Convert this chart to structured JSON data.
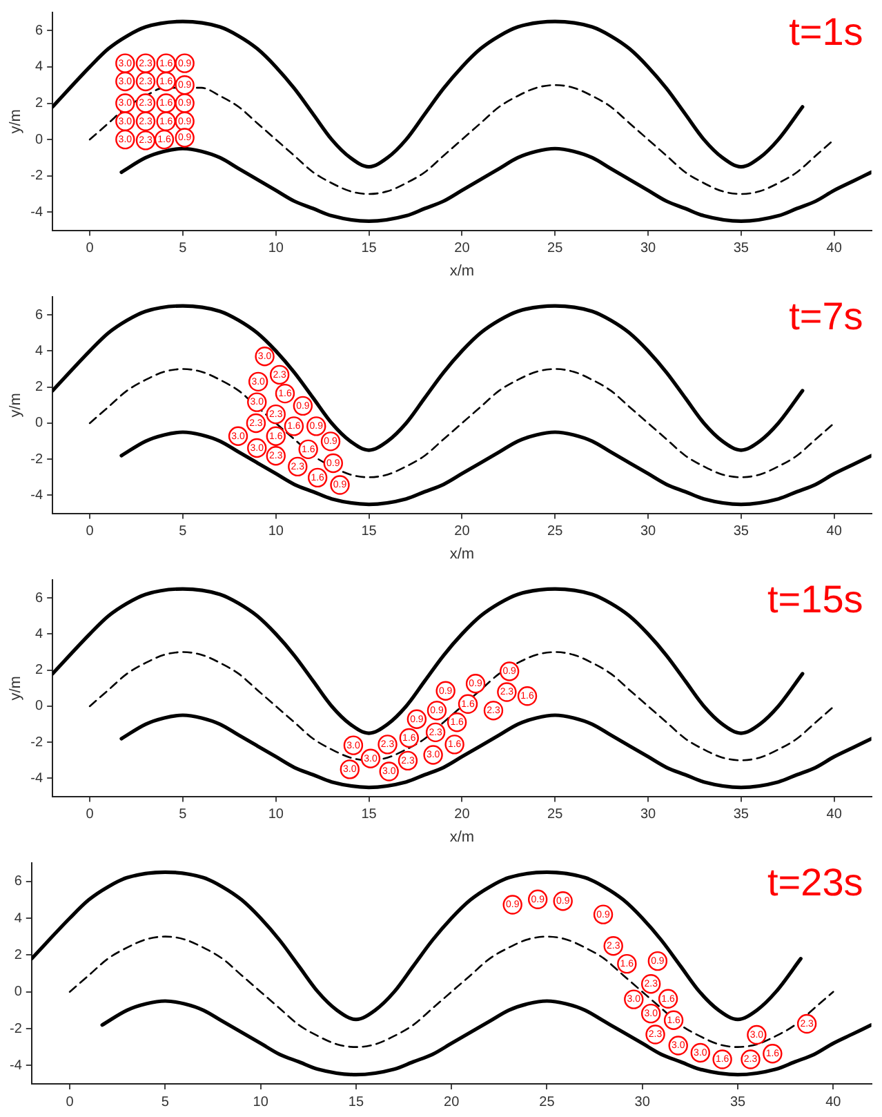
{
  "chart_data": [
    {
      "type": "scatter",
      "title": "t=1s",
      "xlabel": "x/m",
      "ylabel": "y/m",
      "xlim": [
        -2,
        42
      ],
      "ylim": [
        -5,
        7
      ],
      "xticks": [
        0,
        5,
        10,
        15,
        20,
        25,
        30,
        35,
        40
      ],
      "yticks": [
        -4,
        -2,
        0,
        2,
        4,
        6
      ],
      "grid": false,
      "legend": false,
      "series": [
        {
          "type": "line",
          "color": "#000000",
          "line_style": "solid",
          "marker": "none",
          "x": [
            -2,
            0,
            1,
            2,
            3,
            5,
            7,
            8,
            9,
            10,
            11,
            12,
            13,
            14,
            15,
            16,
            17,
            18,
            19,
            20,
            21,
            22,
            23,
            25,
            27,
            28,
            29,
            30,
            31,
            32,
            33,
            34,
            35,
            36,
            37,
            38.3
          ],
          "values": [
            1.8,
            4,
            5,
            5.7,
            6.2,
            6.5,
            6.2,
            5.7,
            5,
            4,
            2.8,
            1.4,
            0,
            -1,
            -1.5,
            -1,
            0,
            1.4,
            2.8,
            4,
            5,
            5.7,
            6.2,
            6.5,
            6.2,
            5.7,
            5,
            4,
            2.8,
            1.4,
            0,
            -1,
            -1.5,
            -1,
            0,
            1.8
          ]
        },
        {
          "type": "line",
          "color": "#000000",
          "line_style": "dashed",
          "marker": "none",
          "x": [
            0,
            1,
            2,
            3,
            4,
            6,
            7,
            8,
            9,
            10,
            11,
            12,
            13,
            14,
            15,
            16,
            17,
            18,
            19,
            20,
            21,
            22,
            23,
            24,
            25,
            26,
            27,
            28,
            29,
            30,
            31,
            32,
            33,
            34,
            35,
            36,
            37,
            38,
            39,
            40
          ],
          "values": [
            0,
            0.9,
            1.8,
            2.4,
            2.85,
            2.85,
            2.4,
            1.8,
            0.9,
            0,
            -0.9,
            -1.8,
            -2.4,
            -2.85,
            -3,
            -2.85,
            -2.4,
            -1.8,
            -0.9,
            0,
            0.9,
            1.8,
            2.4,
            2.85,
            3,
            2.85,
            2.4,
            1.8,
            0.9,
            0,
            -0.9,
            -1.8,
            -2.4,
            -2.85,
            -3,
            -2.85,
            -2.4,
            -1.8,
            -0.9,
            0
          ]
        },
        {
          "type": "line",
          "color": "#000000",
          "line_style": "solid",
          "marker": "none",
          "x": [
            1.7,
            3,
            4,
            5,
            6,
            7,
            8,
            9,
            10,
            11,
            12,
            13,
            15,
            17,
            18,
            19,
            20,
            21,
            22,
            23,
            24,
            25,
            26,
            27,
            28,
            29,
            30,
            31,
            32,
            33,
            35,
            37,
            38,
            39,
            40,
            41,
            42
          ],
          "values": [
            -1.8,
            -1,
            -0.65,
            -0.5,
            -0.65,
            -1,
            -1.6,
            -2.2,
            -2.8,
            -3.4,
            -3.8,
            -4.2,
            -4.5,
            -4.2,
            -3.8,
            -3.4,
            -2.8,
            -2.2,
            -1.6,
            -1,
            -0.65,
            -0.5,
            -0.65,
            -1,
            -1.6,
            -2.2,
            -2.8,
            -3.4,
            -3.8,
            -4.2,
            -4.5,
            -4.2,
            -3.8,
            -3.4,
            -2.8,
            -2.3,
            -1.8
          ]
        },
        {
          "name": "3.0",
          "color": "#ff0000",
          "marker": "circle",
          "x": [
            1.9,
            1.9,
            1.9,
            1.9,
            1.9
          ],
          "values": [
            4.2,
            3.2,
            2,
            1,
            0
          ]
        },
        {
          "name": "2.3",
          "color": "#ff0000",
          "marker": "circle",
          "x": [
            3,
            3,
            3,
            3,
            3
          ],
          "values": [
            4.2,
            3.2,
            2,
            1,
            -0.05
          ]
        },
        {
          "name": "1.6",
          "color": "#ff0000",
          "marker": "circle",
          "x": [
            4.1,
            4.1,
            4.1,
            4.1,
            4
          ],
          "values": [
            4.2,
            3.2,
            2,
            1,
            0
          ]
        },
        {
          "name": "0.9",
          "color": "#ff0000",
          "marker": "circle",
          "x": [
            5.1,
            5.1,
            5.1,
            5.1,
            5.1
          ],
          "values": [
            4.2,
            3,
            2,
            1,
            0.1
          ]
        }
      ]
    },
    {
      "type": "scatter",
      "title": "t=7s",
      "xlabel": "x/m",
      "ylabel": "y/m",
      "xlim": [
        -2,
        42
      ],
      "ylim": [
        -5,
        7
      ],
      "xticks": [
        0,
        5,
        10,
        15,
        20,
        25,
        30,
        35,
        40
      ],
      "yticks": [
        -4,
        -2,
        0,
        2,
        4,
        6
      ],
      "grid": false,
      "legend": false,
      "series": [
        {
          "type": "line",
          "color": "#000000",
          "line_style": "solid",
          "marker": "none",
          "x": [
            -2,
            0,
            1,
            2,
            3,
            5,
            7,
            8,
            9,
            10,
            11,
            12,
            13,
            14,
            15,
            16,
            17,
            18,
            19,
            20,
            21,
            22,
            23,
            25,
            27,
            28,
            29,
            30,
            31,
            32,
            33,
            34,
            35,
            36,
            37,
            38.3
          ],
          "values": [
            1.8,
            4,
            5,
            5.7,
            6.2,
            6.5,
            6.2,
            5.7,
            5,
            4,
            2.8,
            1.4,
            0,
            -1,
            -1.5,
            -1,
            0,
            1.4,
            2.8,
            4,
            5,
            5.7,
            6.2,
            6.5,
            6.2,
            5.7,
            5,
            4,
            2.8,
            1.4,
            0,
            -1,
            -1.5,
            -1,
            0,
            1.8
          ]
        },
        {
          "type": "line",
          "color": "#000000",
          "line_style": "dashed",
          "marker": "none",
          "x": [
            0,
            1,
            2,
            3,
            4,
            5,
            6,
            7,
            8,
            9,
            10,
            11,
            12,
            13,
            14,
            15,
            16,
            17,
            18,
            19,
            20,
            21,
            22,
            23,
            24,
            25,
            26,
            27,
            28,
            29,
            30,
            31,
            32,
            33,
            34,
            35,
            36,
            37,
            38,
            39,
            40
          ],
          "values": [
            0,
            0.9,
            1.8,
            2.4,
            2.85,
            3,
            2.85,
            2.4,
            1.8,
            0.9,
            0,
            -0.9,
            -1.8,
            -2.4,
            -2.85,
            -3,
            -2.85,
            -2.4,
            -1.8,
            -0.9,
            0,
            0.9,
            1.8,
            2.4,
            2.85,
            3,
            2.85,
            2.4,
            1.8,
            0.9,
            0,
            -0.9,
            -1.8,
            -2.4,
            -2.85,
            -3,
            -2.85,
            -2.4,
            -1.8,
            -0.9,
            0
          ]
        },
        {
          "type": "line",
          "color": "#000000",
          "line_style": "solid",
          "marker": "none",
          "x": [
            1.7,
            3,
            4,
            5,
            6,
            7,
            8,
            9,
            10,
            11,
            12,
            13,
            15,
            17,
            18,
            19,
            20,
            21,
            22,
            23,
            24,
            25,
            26,
            27,
            28,
            29,
            30,
            31,
            32,
            33,
            35,
            37,
            38,
            39,
            40,
            41,
            42
          ],
          "values": [
            -1.8,
            -1,
            -0.65,
            -0.5,
            -0.65,
            -1,
            -1.6,
            -2.2,
            -2.8,
            -3.4,
            -3.8,
            -4.2,
            -4.5,
            -4.2,
            -3.8,
            -3.4,
            -2.8,
            -2.2,
            -1.6,
            -1,
            -0.65,
            -0.5,
            -0.65,
            -1,
            -1.6,
            -2.2,
            -2.8,
            -3.4,
            -3.8,
            -4.2,
            -4.5,
            -4.2,
            -3.8,
            -3.4,
            -2.8,
            -2.3,
            -1.8
          ]
        },
        {
          "name": "3.0",
          "color": "#ff0000",
          "marker": "circle",
          "x": [
            9.4,
            9.05,
            8.98,
            7.97,
            8.98
          ],
          "values": [
            3.7,
            2.3,
            1.16,
            -0.72,
            -1.38
          ]
        },
        {
          "name": "2.3",
          "color": "#ff0000",
          "marker": "circle",
          "x": [
            10.2,
            10,
            8.93,
            10,
            11.17
          ],
          "values": [
            2.68,
            0.49,
            0,
            -1.81,
            -2.41
          ]
        },
        {
          "name": "1.6",
          "color": "#ff0000",
          "marker": "circle",
          "x": [
            10.49,
            10.97,
            10,
            11.74,
            12.24
          ],
          "values": [
            1.64,
            -0.17,
            -0.72,
            -1.45,
            -3.02
          ]
        },
        {
          "name": "0.9",
          "color": "#ff0000",
          "marker": "circle",
          "x": [
            11.45,
            12.17,
            12.94,
            13.08,
            13.44
          ],
          "values": [
            0.96,
            -0.17,
            -1.01,
            -2.22,
            -3.43
          ]
        }
      ]
    },
    {
      "type": "scatter",
      "title": "t=15s",
      "xlabel": "x/m",
      "ylabel": "y/m",
      "xlim": [
        -2,
        42
      ],
      "ylim": [
        -5,
        7
      ],
      "xticks": [
        0,
        5,
        10,
        15,
        20,
        25,
        30,
        35,
        40
      ],
      "yticks": [
        -4,
        -2,
        0,
        2,
        4,
        6
      ],
      "grid": false,
      "legend": false,
      "series": [
        {
          "type": "line",
          "color": "#000000",
          "line_style": "solid",
          "marker": "none",
          "x": [
            -2,
            0,
            1,
            2,
            3,
            5,
            7,
            8,
            9,
            10,
            11,
            12,
            13,
            14,
            15,
            16,
            17,
            18,
            19,
            20,
            21,
            22,
            23,
            25,
            27,
            28,
            29,
            30,
            31,
            32,
            33,
            34,
            35,
            36,
            37,
            38.3
          ],
          "values": [
            1.8,
            4,
            5,
            5.7,
            6.2,
            6.5,
            6.2,
            5.7,
            5,
            4,
            2.8,
            1.4,
            0,
            -1,
            -1.5,
            -1,
            0,
            1.4,
            2.8,
            4,
            5,
            5.7,
            6.2,
            6.5,
            6.2,
            5.7,
            5,
            4,
            2.8,
            1.4,
            0,
            -1,
            -1.5,
            -1,
            0,
            1.8
          ]
        },
        {
          "type": "line",
          "color": "#000000",
          "line_style": "dashed",
          "marker": "none",
          "x": [
            0,
            1,
            2,
            3,
            4,
            5,
            6,
            7,
            8,
            9,
            10,
            11,
            12,
            13,
            14,
            15,
            16,
            17,
            18,
            19,
            20,
            21,
            22,
            23,
            24,
            25,
            26,
            27,
            28,
            29,
            30,
            31,
            32,
            33,
            34,
            35,
            36,
            37,
            38,
            39,
            40
          ],
          "values": [
            0,
            0.9,
            1.8,
            2.4,
            2.85,
            3,
            2.85,
            2.4,
            1.8,
            0.9,
            0,
            -0.9,
            -1.8,
            -2.4,
            -2.85,
            -3,
            -2.85,
            -2.4,
            -1.8,
            -0.9,
            0,
            0.9,
            1.8,
            2.4,
            2.85,
            3,
            2.85,
            2.4,
            1.8,
            0.9,
            0,
            -0.9,
            -1.8,
            -2.4,
            -2.85,
            -3,
            -2.85,
            -2.4,
            -1.8,
            -0.9,
            0
          ]
        },
        {
          "type": "line",
          "color": "#000000",
          "line_style": "solid",
          "marker": "none",
          "x": [
            1.7,
            3,
            4,
            5,
            6,
            7,
            8,
            9,
            10,
            11,
            12,
            13,
            15,
            17,
            18,
            19,
            20,
            21,
            22,
            23,
            24,
            25,
            26,
            27,
            28,
            29,
            30,
            31,
            32,
            33,
            35,
            37,
            38,
            39,
            40,
            41,
            42
          ],
          "values": [
            -1.8,
            -1,
            -0.65,
            -0.5,
            -0.65,
            -1,
            -1.6,
            -2.2,
            -2.8,
            -3.4,
            -3.8,
            -4.2,
            -4.5,
            -4.2,
            -3.8,
            -3.4,
            -2.8,
            -2.2,
            -1.6,
            -1,
            -0.65,
            -0.5,
            -0.65,
            -1,
            -1.6,
            -2.2,
            -2.8,
            -3.4,
            -3.8,
            -4.2,
            -4.5,
            -4.2,
            -3.8,
            -3.4,
            -2.8,
            -2.3,
            -1.8
          ]
        },
        {
          "name": "3.0",
          "color": "#ff0000",
          "marker": "circle",
          "x": [
            14.16,
            13.97,
            16.08,
            18.45,
            15.09
          ],
          "values": [
            -2.17,
            -3.5,
            -3.62,
            -2.7,
            -2.9
          ]
        },
        {
          "name": "2.3",
          "color": "#ff0000",
          "marker": "circle",
          "x": [
            16,
            17.09,
            18.58,
            21.69,
            22.41
          ],
          "values": [
            -2.12,
            -3.02,
            -1.45,
            -0.24,
            0.78
          ]
        },
        {
          "name": "1.6",
          "color": "#ff0000",
          "marker": "circle",
          "x": [
            17.16,
            19.73,
            20.32,
            19.6,
            23.51
          ],
          "values": [
            -1.76,
            -0.89,
            0.12,
            -2.12,
            0.56
          ]
        },
        {
          "name": "0.9",
          "color": "#ff0000",
          "marker": "circle",
          "x": [
            17.57,
            18.65,
            19.12,
            20.73,
            22.55
          ],
          "values": [
            -0.72,
            -0.24,
            0.85,
            1.25,
            1.93
          ]
        }
      ]
    },
    {
      "type": "scatter",
      "title": "t=23s",
      "xlim": [
        -2,
        42
      ],
      "ylim": [
        -5,
        7
      ],
      "xticks": [
        0,
        5,
        10,
        15,
        20,
        25,
        30,
        35,
        40
      ],
      "yticks": [
        -4,
        -2,
        0,
        2,
        4,
        6
      ],
      "grid": false,
      "legend": false,
      "series": [
        {
          "type": "line",
          "color": "#000000",
          "line_style": "solid",
          "marker": "none",
          "x": [
            -2,
            0,
            1,
            2,
            3,
            5,
            7,
            8,
            9,
            10,
            11,
            12,
            13,
            14,
            15,
            16,
            17,
            18,
            19,
            20,
            21,
            22,
            23,
            25,
            27,
            28,
            29,
            30,
            31,
            32,
            33,
            34,
            35,
            36,
            37,
            38.3
          ],
          "values": [
            1.8,
            4,
            5,
            5.7,
            6.2,
            6.5,
            6.2,
            5.7,
            5,
            4,
            2.8,
            1.4,
            0,
            -1,
            -1.5,
            -1,
            0,
            1.4,
            2.8,
            4,
            5,
            5.7,
            6.2,
            6.5,
            6.2,
            5.7,
            5,
            4,
            2.8,
            1.4,
            0,
            -1,
            -1.5,
            -1,
            0,
            1.8
          ]
        },
        {
          "type": "line",
          "color": "#000000",
          "line_style": "dashed",
          "marker": "none",
          "x": [
            0,
            1,
            2,
            3,
            4,
            5,
            6,
            7,
            8,
            9,
            10,
            11,
            12,
            13,
            14,
            15,
            16,
            17,
            18,
            19,
            20,
            21,
            22,
            23,
            24,
            25,
            26,
            27,
            28,
            29,
            30,
            31,
            32,
            33,
            34,
            35,
            36,
            37,
            38,
            39,
            40
          ],
          "values": [
            0,
            0.9,
            1.8,
            2.4,
            2.85,
            3,
            2.85,
            2.4,
            1.8,
            0.9,
            0,
            -0.9,
            -1.8,
            -2.4,
            -2.85,
            -3,
            -2.85,
            -2.4,
            -1.8,
            -0.9,
            0,
            0.9,
            1.8,
            2.4,
            2.85,
            3,
            2.85,
            2.4,
            1.8,
            0.9,
            0,
            -0.9,
            -1.8,
            -2.4,
            -2.85,
            -3,
            -2.85,
            -2.4,
            -1.8,
            -0.9,
            0
          ]
        },
        {
          "type": "line",
          "color": "#000000",
          "line_style": "solid",
          "marker": "none",
          "x": [
            1.7,
            3,
            4,
            5,
            6,
            7,
            8,
            9,
            10,
            11,
            12,
            13,
            15,
            17,
            18,
            19,
            20,
            21,
            22,
            23,
            24,
            25,
            26,
            27,
            28,
            29,
            30,
            31,
            32,
            33,
            35,
            37,
            38,
            39,
            40,
            41,
            42
          ],
          "values": [
            -1.8,
            -1,
            -0.65,
            -0.5,
            -0.65,
            -1,
            -1.6,
            -2.2,
            -2.8,
            -3.4,
            -3.8,
            -4.2,
            -4.5,
            -4.2,
            -3.8,
            -3.4,
            -2.8,
            -2.2,
            -1.6,
            -1,
            -0.65,
            -0.5,
            -0.65,
            -1,
            -1.6,
            -2.2,
            -2.8,
            -3.4,
            -3.8,
            -4.2,
            -4.5,
            -4.2,
            -3.8,
            -3.4,
            -2.8,
            -2.3,
            -1.8
          ]
        },
        {
          "name": "3.0",
          "color": "#ff0000",
          "marker": "circle",
          "x": [
            29.55,
            30.45,
            31.88,
            33.04,
            35.99
          ],
          "values": [
            -0.41,
            -1.18,
            -2.92,
            -3.31,
            -2.34
          ]
        },
        {
          "name": "2.3",
          "color": "#ff0000",
          "marker": "circle",
          "x": [
            28.48,
            30.45,
            30.68,
            35.67,
            38.62
          ],
          "values": [
            2.49,
            0.43,
            -2.32,
            -3.67,
            -1.74
          ]
        },
        {
          "name": "1.6",
          "color": "#ff0000",
          "marker": "circle",
          "x": [
            29.19,
            31.35,
            31.64,
            34.19,
            36.82
          ],
          "values": [
            1.52,
            -0.38,
            -1.54,
            -3.67,
            -3.36
          ]
        },
        {
          "name": "0.9",
          "color": "#ff0000",
          "marker": "circle",
          "x": [
            23.2,
            24.52,
            25.84,
            27.95,
            30.8
          ],
          "values": [
            4.73,
            5.02,
            4.93,
            4.2,
            1.67
          ]
        }
      ]
    }
  ]
}
